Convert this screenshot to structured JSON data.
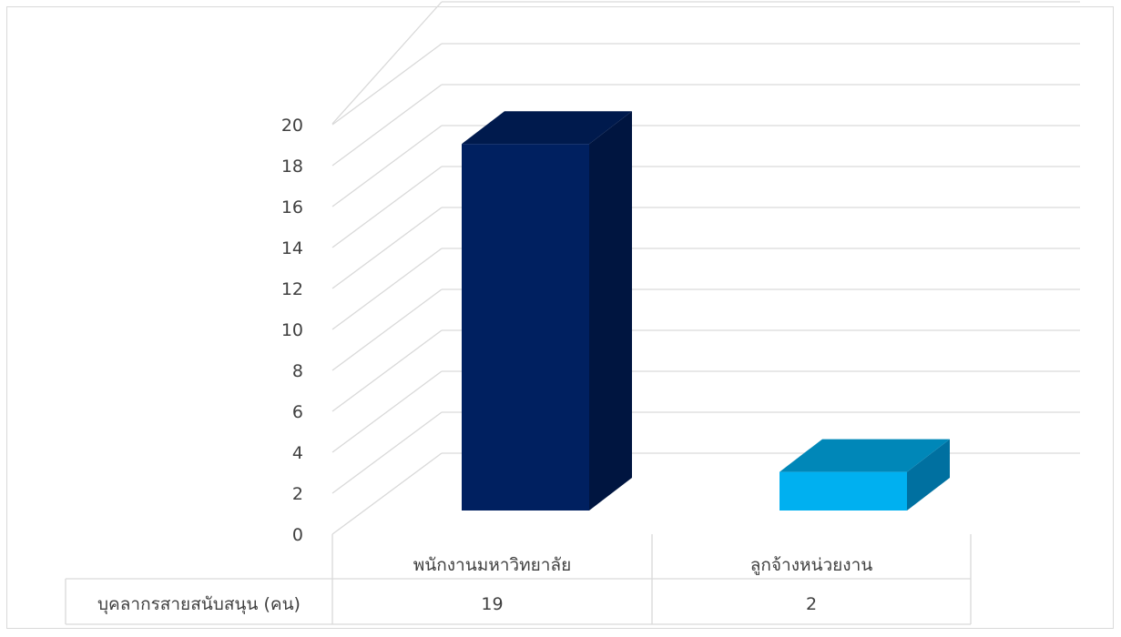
{
  "chart_data": {
    "type": "bar",
    "title": "",
    "xlabel": "",
    "ylabel": "",
    "categories": [
      "พนักงานมหาวิทยาลัย",
      "ลูกจ้างหน่วยงาน"
    ],
    "series": [
      {
        "name": "บุคลากรสายสนับสนุน (คน)",
        "values": [
          19,
          2
        ]
      }
    ],
    "ylim": [
      0,
      20
    ],
    "yticks": [
      0,
      2,
      4,
      6,
      8,
      10,
      12,
      14,
      16,
      18,
      20
    ],
    "grid": true,
    "legend": "none",
    "data_table": true,
    "bar_style": "3d",
    "colors": {
      "bar_1_front": "#002060",
      "bar_1_side": "#001540",
      "bar_1_top": "#001a4d",
      "bar_2_front": "#00b0f0",
      "bar_2_side": "#0070a0",
      "bar_2_top": "#0087b8",
      "gridline": "#d9d9d9",
      "text": "#404040"
    }
  }
}
